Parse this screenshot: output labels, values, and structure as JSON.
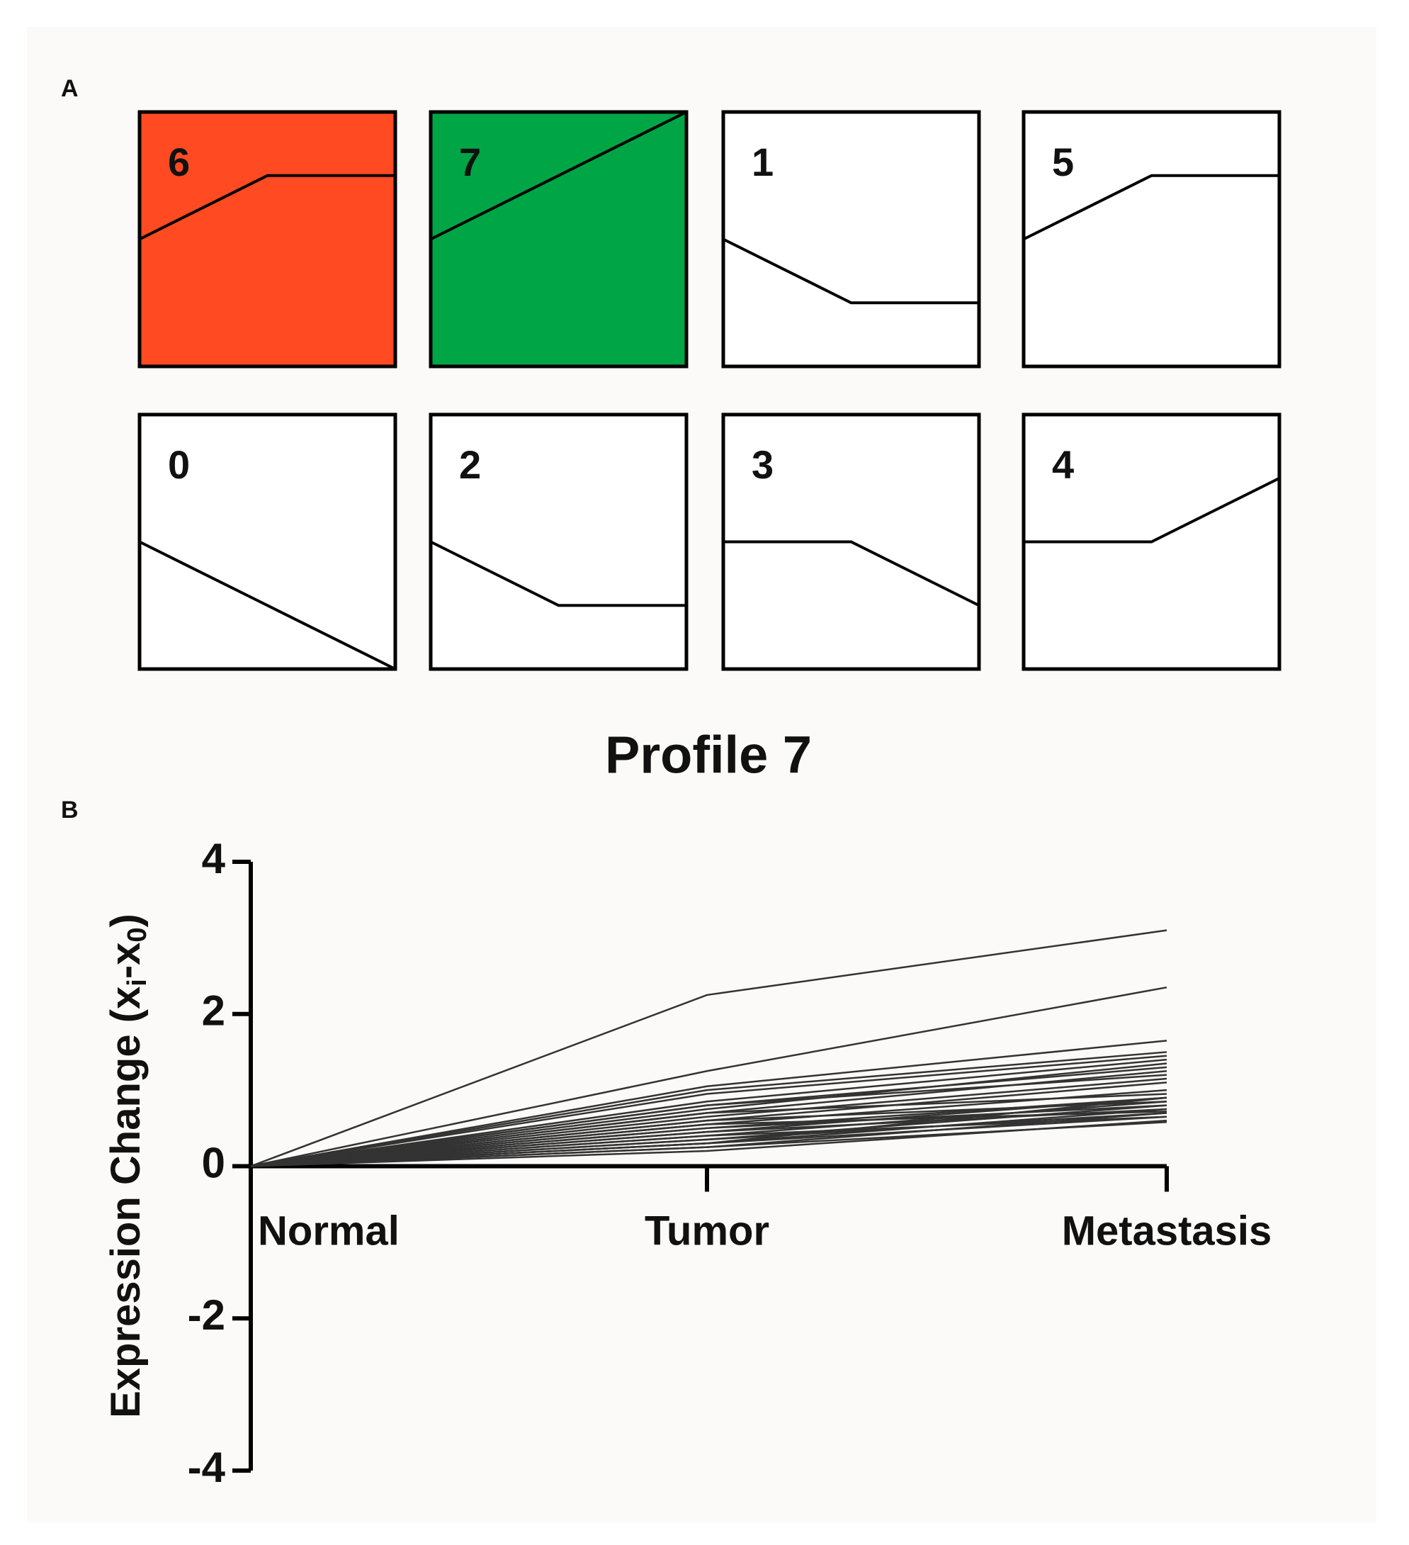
{
  "chart_data": [
    {
      "type": "profiles",
      "panel_label": "A",
      "ylim": [
        -2,
        2
      ],
      "line_color": "#000000",
      "box_fill": "#ffffff",
      "profiles": [
        {
          "label": "6",
          "values": [
            0,
            1,
            1
          ],
          "fill": "#ff4a22"
        },
        {
          "label": "7",
          "values": [
            0,
            1,
            2
          ],
          "fill": "#00a545"
        },
        {
          "label": "1",
          "values": [
            0,
            -1,
            -1
          ]
        },
        {
          "label": "5",
          "values": [
            0,
            1,
            1
          ]
        },
        {
          "label": "0",
          "values": [
            0,
            -1,
            -2
          ]
        },
        {
          "label": "2",
          "values": [
            0,
            -1,
            -1
          ]
        },
        {
          "label": "3",
          "values": [
            0,
            0,
            -1
          ]
        },
        {
          "label": "4",
          "values": [
            0,
            0,
            1
          ]
        }
      ]
    },
    {
      "type": "line",
      "panel_label": "B",
      "title": "Profile 7",
      "y_label": [
        "Expression Change (x",
        "i",
        "-x",
        "0",
        ")"
      ],
      "categories": [
        "Normal",
        "Tumor",
        "Metastasis"
      ],
      "ylim": [
        -4,
        4
      ],
      "yticks": [
        -4,
        -2,
        0,
        2,
        4
      ],
      "color": "#333333",
      "series": [
        {
          "values": [
            0,
            2.25,
            3.1
          ]
        },
        {
          "values": [
            0,
            1.25,
            2.35
          ]
        },
        {
          "values": [
            0,
            1.05,
            1.65
          ]
        },
        {
          "values": [
            0,
            1.0,
            1.5
          ]
        },
        {
          "values": [
            0,
            0.95,
            1.45
          ]
        },
        {
          "values": [
            0,
            0.85,
            1.4
          ]
        },
        {
          "values": [
            0,
            0.8,
            1.3
          ]
        },
        {
          "values": [
            0,
            0.75,
            1.35
          ]
        },
        {
          "values": [
            0,
            0.7,
            1.25
          ]
        },
        {
          "values": [
            0,
            0.8,
            1.2
          ]
        },
        {
          "values": [
            0,
            0.65,
            1.15
          ]
        },
        {
          "values": [
            0,
            0.6,
            1.1
          ]
        },
        {
          "values": [
            0,
            0.55,
            1.0
          ]
        },
        {
          "values": [
            0,
            0.7,
            0.95
          ]
        },
        {
          "values": [
            0,
            0.5,
            0.9
          ]
        },
        {
          "values": [
            0,
            0.45,
            0.9
          ]
        },
        {
          "values": [
            0,
            0.6,
            0.85
          ]
        },
        {
          "values": [
            0,
            0.4,
            0.85
          ]
        },
        {
          "values": [
            0,
            0.35,
            0.8
          ]
        },
        {
          "values": [
            0,
            0.5,
            0.8
          ]
        },
        {
          "values": [
            0,
            0.3,
            0.75
          ]
        },
        {
          "values": [
            0,
            0.45,
            0.75
          ]
        },
        {
          "values": [
            0,
            0.25,
            0.7
          ]
        },
        {
          "values": [
            0,
            0.35,
            0.7
          ]
        },
        {
          "values": [
            0,
            0.3,
            0.65
          ]
        },
        {
          "values": [
            0,
            0.2,
            0.6
          ]
        },
        {
          "values": [
            0,
            0.4,
            0.65
          ]
        },
        {
          "values": [
            0,
            0.25,
            0.58
          ]
        },
        {
          "values": [
            0,
            0.55,
            0.72
          ]
        },
        {
          "values": [
            0,
            0.3,
            0.9
          ]
        }
      ]
    }
  ]
}
